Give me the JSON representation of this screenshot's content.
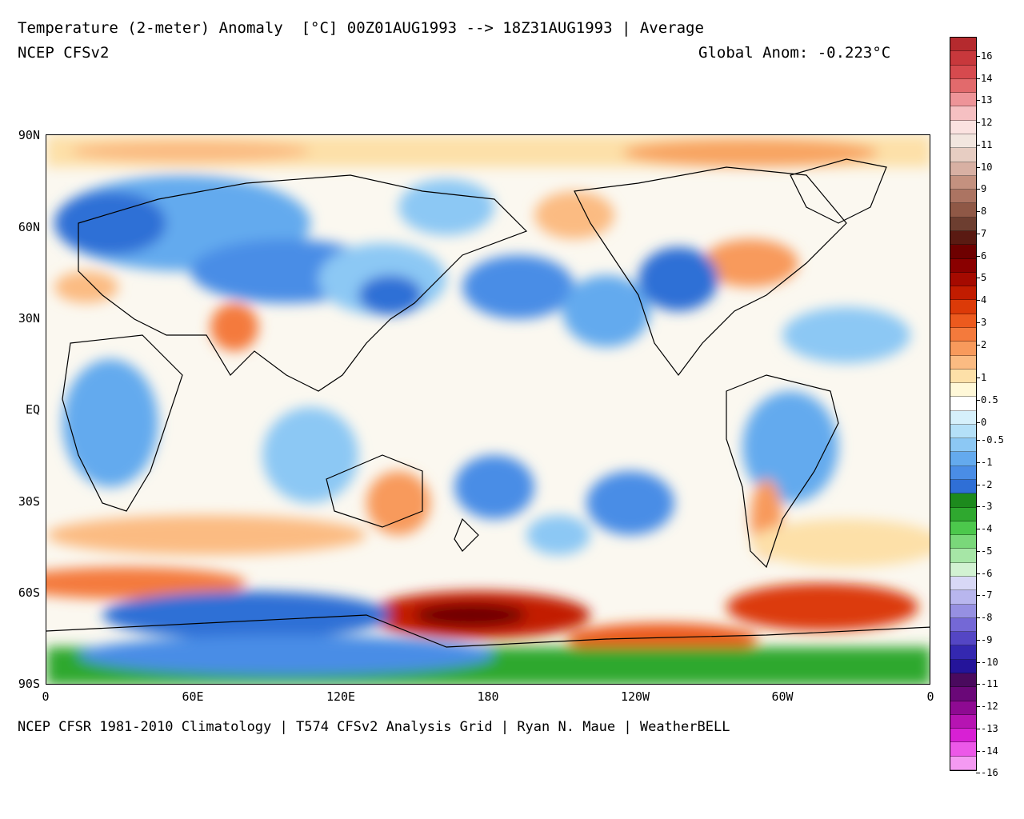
{
  "header": {
    "title": "Temperature (2-meter) Anomaly  [°C] 00Z01AUG1993 --> 18Z31AUG1993 | Average",
    "model": "NCEP CFSv2",
    "global_anomaly": "Global Anom: -0.223°C"
  },
  "footer": {
    "credits": "NCEP CFSR 1981-2010 Climatology | T574 CFSv2 Analysis Grid | Ryan N. Maue | WeatherBELL"
  },
  "map": {
    "lat_labels": [
      "90N",
      "60N",
      "30N",
      "EQ",
      "30S",
      "60S",
      "90S"
    ],
    "lon_labels": [
      "0",
      "60E",
      "120E",
      "180",
      "120W",
      "60W",
      "0"
    ]
  },
  "colorbar": {
    "labels": [
      "16",
      "14",
      "13",
      "12",
      "11",
      "10",
      "9",
      "8",
      "7",
      "6",
      "5",
      "4",
      "3",
      "2",
      "1",
      "0.5",
      "0",
      "-0.5",
      "-1",
      "-2",
      "-3",
      "-4",
      "-5",
      "-6",
      "-7",
      "-8",
      "-9",
      "-10",
      "-11",
      "-12",
      "-13",
      "-14",
      "-16"
    ],
    "colors": [
      "#b52a2e",
      "#c8383c",
      "#d64a4e",
      "#e26a6c",
      "#ee9498",
      "#f6c0c2",
      "#fbe2e0",
      "#f2e6df",
      "#e7cdc2",
      "#d8b0a3",
      "#c4917f",
      "#ac7462",
      "#8f5846",
      "#6d3e30",
      "#5a1a12",
      "#6e0000",
      "#8a0000",
      "#a50a00",
      "#c21c00",
      "#dc3a08",
      "#ec5a1e",
      "#f47a3c",
      "#f89a5c",
      "#fbbb82",
      "#fde0a8",
      "#fff8d8",
      "#ffffff",
      "#d6f0fb",
      "#b4e0f8",
      "#8cc8f4",
      "#64aaee",
      "#4a8de6",
      "#2f6fd6",
      "#1d8a1d",
      "#2fa82f",
      "#4cc84c",
      "#7ad87a",
      "#a6e6a6",
      "#d2f2d2",
      "#d8d8f6",
      "#b8b6ee",
      "#9690e2",
      "#7468d6",
      "#5446c4",
      "#3428b0",
      "#24149a",
      "#4a0a5e",
      "#6a0878",
      "#8e0a92",
      "#b614b2",
      "#d820d4",
      "#ec58e8",
      "#f49af2"
    ]
  }
}
